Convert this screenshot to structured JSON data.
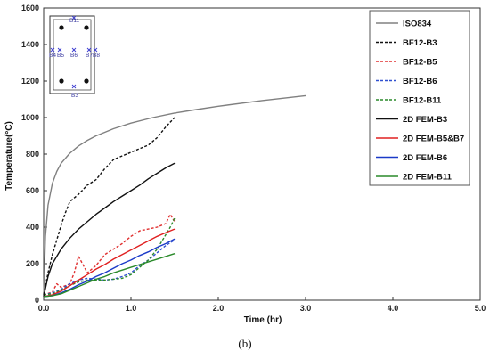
{
  "caption": "(b)",
  "chart_data": {
    "type": "line",
    "xlabel": "Time (hr)",
    "ylabel": "Temperature(°C)",
    "xlim": [
      0,
      5
    ],
    "ylim": [
      0,
      1600
    ],
    "xticks": [
      0.0,
      1.0,
      2.0,
      3.0,
      4.0,
      5.0
    ],
    "xtick_labels": [
      "0.0",
      "1.0",
      "2.0",
      "3.0",
      "4.0",
      "5.0"
    ],
    "yticks": [
      0,
      200,
      400,
      600,
      800,
      1000,
      1200,
      1400,
      1600
    ],
    "ytick_labels": [
      "0",
      "200",
      "400",
      "600",
      "800",
      "1000",
      "1200",
      "1400",
      "1600"
    ],
    "grid": false,
    "legend_position": "top-right",
    "series": [
      {
        "name": "ISO834",
        "color": "#808080",
        "dash": "solid",
        "x": [
          0,
          0.02,
          0.05,
          0.1,
          0.15,
          0.2,
          0.3,
          0.4,
          0.5,
          0.6,
          0.8,
          1.0,
          1.25,
          1.5,
          1.75,
          2.0,
          2.5,
          3.0
        ],
        "y": [
          20,
          350,
          520,
          640,
          705,
          750,
          805,
          845,
          875,
          900,
          939,
          970,
          1000,
          1025,
          1044,
          1062,
          1093,
          1120
        ]
      },
      {
        "name": "BF12-B3",
        "color": "#111111",
        "dash": "3,2",
        "x": [
          0,
          0.05,
          0.1,
          0.15,
          0.2,
          0.25,
          0.3,
          0.35,
          0.4,
          0.5,
          0.6,
          0.7,
          0.8,
          0.9,
          1.0,
          1.1,
          1.2,
          1.3,
          1.4,
          1.5
        ],
        "y": [
          30,
          150,
          250,
          330,
          410,
          480,
          540,
          560,
          580,
          630,
          660,
          720,
          770,
          790,
          810,
          830,
          850,
          890,
          950,
          1000
        ]
      },
      {
        "name": "BF12-B5",
        "color": "#e03030",
        "dash": "3,2",
        "x": [
          0,
          0.1,
          0.15,
          0.2,
          0.3,
          0.35,
          0.4,
          0.5,
          0.6,
          0.7,
          0.8,
          0.9,
          1.0,
          1.1,
          1.2,
          1.3,
          1.4,
          1.45,
          1.5
        ],
        "y": [
          30,
          45,
          90,
          70,
          90,
          150,
          240,
          150,
          190,
          250,
          280,
          310,
          350,
          380,
          390,
          400,
          420,
          470,
          430
        ]
      },
      {
        "name": "BF12-B6",
        "color": "#3050d0",
        "dash": "3,2",
        "x": [
          0,
          0.1,
          0.2,
          0.3,
          0.4,
          0.5,
          0.6,
          0.7,
          0.8,
          0.9,
          1.0,
          1.1,
          1.2,
          1.3,
          1.4,
          1.5
        ],
        "y": [
          30,
          40,
          60,
          90,
          110,
          120,
          115,
          110,
          115,
          130,
          150,
          190,
          220,
          260,
          300,
          330
        ]
      },
      {
        "name": "BF12-B11",
        "color": "#2a8a2a",
        "dash": "3,2",
        "x": [
          0,
          0.1,
          0.2,
          0.3,
          0.4,
          0.5,
          0.6,
          0.7,
          0.8,
          0.9,
          1.0,
          1.1,
          1.2,
          1.3,
          1.35,
          1.4,
          1.45,
          1.5
        ],
        "y": [
          30,
          35,
          55,
          80,
          100,
          110,
          110,
          110,
          115,
          120,
          140,
          180,
          220,
          280,
          320,
          360,
          400,
          450
        ]
      },
      {
        "name": "2D FEM-B3",
        "color": "#111111",
        "dash": "solid",
        "x": [
          0,
          0.05,
          0.1,
          0.2,
          0.3,
          0.4,
          0.5,
          0.6,
          0.7,
          0.8,
          0.9,
          1.0,
          1.1,
          1.2,
          1.3,
          1.4,
          1.5
        ],
        "y": [
          20,
          130,
          200,
          280,
          340,
          390,
          430,
          470,
          505,
          540,
          570,
          600,
          630,
          665,
          695,
          725,
          750
        ]
      },
      {
        "name": "2D FEM-B5&B7",
        "color": "#e02020",
        "dash": "solid",
        "x": [
          0,
          0.1,
          0.2,
          0.3,
          0.4,
          0.5,
          0.6,
          0.7,
          0.8,
          0.9,
          1.0,
          1.1,
          1.2,
          1.3,
          1.4,
          1.5
        ],
        "y": [
          20,
          30,
          50,
          80,
          110,
          140,
          170,
          195,
          225,
          250,
          275,
          300,
          325,
          350,
          370,
          390
        ]
      },
      {
        "name": "2D FEM-B6",
        "color": "#1a3ac8",
        "dash": "solid",
        "x": [
          0,
          0.1,
          0.2,
          0.3,
          0.4,
          0.5,
          0.6,
          0.7,
          0.8,
          0.9,
          1.0,
          1.1,
          1.2,
          1.3,
          1.4,
          1.5
        ],
        "y": [
          20,
          25,
          40,
          60,
          85,
          105,
          130,
          150,
          175,
          200,
          220,
          245,
          265,
          290,
          310,
          335
        ]
      },
      {
        "name": "2D FEM-B11",
        "color": "#2a8a2a",
        "dash": "solid",
        "x": [
          0,
          0.1,
          0.2,
          0.3,
          0.4,
          0.5,
          0.6,
          0.7,
          0.8,
          0.9,
          1.0,
          1.1,
          1.2,
          1.3,
          1.4,
          1.5
        ],
        "y": [
          20,
          25,
          35,
          55,
          75,
          95,
          115,
          130,
          150,
          165,
          180,
          195,
          210,
          225,
          240,
          255
        ]
      }
    ],
    "inset": {
      "labels": [
        "B11",
        "B4",
        "B5",
        "B6",
        "B7",
        "B8",
        "B3"
      ]
    }
  }
}
